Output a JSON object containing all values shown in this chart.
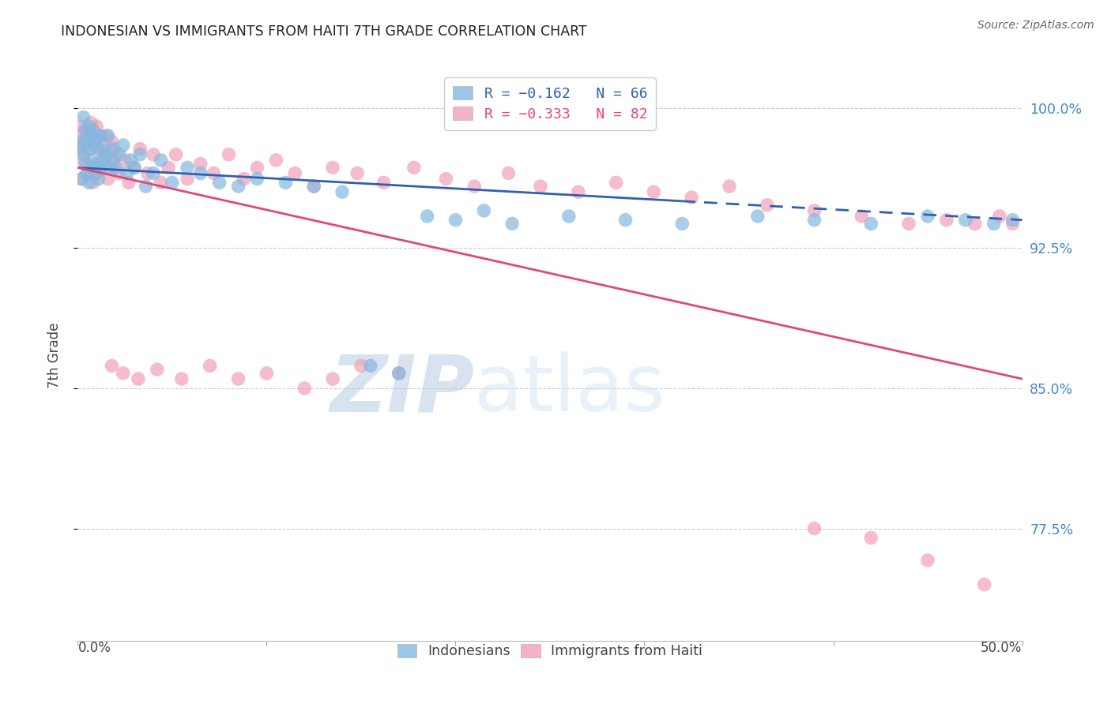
{
  "title": "INDONESIAN VS IMMIGRANTS FROM HAITI 7TH GRADE CORRELATION CHART",
  "source": "Source: ZipAtlas.com",
  "ylabel": "7th Grade",
  "xlim": [
    0.0,
    0.5
  ],
  "ylim": [
    0.715,
    1.02
  ],
  "yticks": [
    0.775,
    0.85,
    0.925,
    1.0
  ],
  "ytick_labels": [
    "77.5%",
    "85.0%",
    "92.5%",
    "100.0%"
  ],
  "legend_entry1": "R = −0.162   N = 66",
  "legend_entry2": "R = −0.333   N = 82",
  "legend_label1": "Indonesians",
  "legend_label2": "Immigrants from Haiti",
  "blue_color": "#85b8e0",
  "pink_color": "#f0a0b8",
  "blue_line_color": "#3060b0",
  "pink_line_color": "#e04878",
  "blue_R": -0.162,
  "pink_R": -0.333,
  "blue_scatter_x": [
    0.001,
    0.002,
    0.002,
    0.003,
    0.003,
    0.004,
    0.004,
    0.005,
    0.005,
    0.006,
    0.006,
    0.006,
    0.007,
    0.007,
    0.008,
    0.008,
    0.009,
    0.009,
    0.01,
    0.01,
    0.011,
    0.011,
    0.012,
    0.012,
    0.013,
    0.014,
    0.015,
    0.016,
    0.017,
    0.018,
    0.019,
    0.02,
    0.022,
    0.024,
    0.026,
    0.028,
    0.03,
    0.033,
    0.036,
    0.04,
    0.044,
    0.05,
    0.058,
    0.065,
    0.075,
    0.085,
    0.095,
    0.11,
    0.125,
    0.14,
    0.155,
    0.17,
    0.185,
    0.2,
    0.215,
    0.23,
    0.26,
    0.29,
    0.32,
    0.36,
    0.39,
    0.42,
    0.45,
    0.47,
    0.485,
    0.495
  ],
  "blue_scatter_y": [
    0.978,
    0.982,
    0.962,
    0.995,
    0.975,
    0.988,
    0.97,
    0.982,
    0.965,
    0.99,
    0.978,
    0.96,
    0.985,
    0.972,
    0.988,
    0.968,
    0.98,
    0.965,
    0.985,
    0.97,
    0.978,
    0.962,
    0.985,
    0.968,
    0.972,
    0.978,
    0.975,
    0.985,
    0.968,
    0.972,
    0.978,
    0.968,
    0.975,
    0.98,
    0.965,
    0.972,
    0.968,
    0.975,
    0.958,
    0.965,
    0.972,
    0.96,
    0.968,
    0.965,
    0.96,
    0.958,
    0.962,
    0.96,
    0.958,
    0.955,
    0.862,
    0.858,
    0.942,
    0.94,
    0.945,
    0.938,
    0.942,
    0.94,
    0.938,
    0.942,
    0.94,
    0.938,
    0.942,
    0.94,
    0.938,
    0.94
  ],
  "pink_scatter_x": [
    0.001,
    0.002,
    0.002,
    0.003,
    0.003,
    0.004,
    0.005,
    0.005,
    0.006,
    0.007,
    0.007,
    0.008,
    0.008,
    0.009,
    0.01,
    0.01,
    0.011,
    0.012,
    0.013,
    0.014,
    0.015,
    0.016,
    0.017,
    0.018,
    0.019,
    0.02,
    0.022,
    0.025,
    0.027,
    0.03,
    0.033,
    0.037,
    0.04,
    0.044,
    0.048,
    0.052,
    0.058,
    0.065,
    0.072,
    0.08,
    0.088,
    0.095,
    0.105,
    0.115,
    0.125,
    0.135,
    0.148,
    0.162,
    0.178,
    0.195,
    0.21,
    0.228,
    0.245,
    0.265,
    0.285,
    0.305,
    0.325,
    0.345,
    0.365,
    0.39,
    0.415,
    0.44,
    0.46,
    0.475,
    0.488,
    0.495,
    0.17,
    0.15,
    0.135,
    0.12,
    0.1,
    0.085,
    0.07,
    0.055,
    0.042,
    0.032,
    0.024,
    0.018,
    0.39,
    0.42,
    0.45,
    0.48
  ],
  "pink_scatter_y": [
    0.985,
    0.978,
    0.962,
    0.99,
    0.972,
    0.982,
    0.988,
    0.965,
    0.978,
    0.992,
    0.968,
    0.985,
    0.96,
    0.982,
    0.99,
    0.965,
    0.978,
    0.985,
    0.968,
    0.975,
    0.985,
    0.962,
    0.978,
    0.982,
    0.97,
    0.975,
    0.965,
    0.972,
    0.96,
    0.968,
    0.978,
    0.965,
    0.975,
    0.96,
    0.968,
    0.975,
    0.962,
    0.97,
    0.965,
    0.975,
    0.962,
    0.968,
    0.972,
    0.965,
    0.958,
    0.968,
    0.965,
    0.96,
    0.968,
    0.962,
    0.958,
    0.965,
    0.958,
    0.955,
    0.96,
    0.955,
    0.952,
    0.958,
    0.948,
    0.945,
    0.942,
    0.938,
    0.94,
    0.938,
    0.942,
    0.938,
    0.858,
    0.862,
    0.855,
    0.85,
    0.858,
    0.855,
    0.862,
    0.855,
    0.86,
    0.855,
    0.858,
    0.862,
    0.775,
    0.77,
    0.758,
    0.745
  ]
}
